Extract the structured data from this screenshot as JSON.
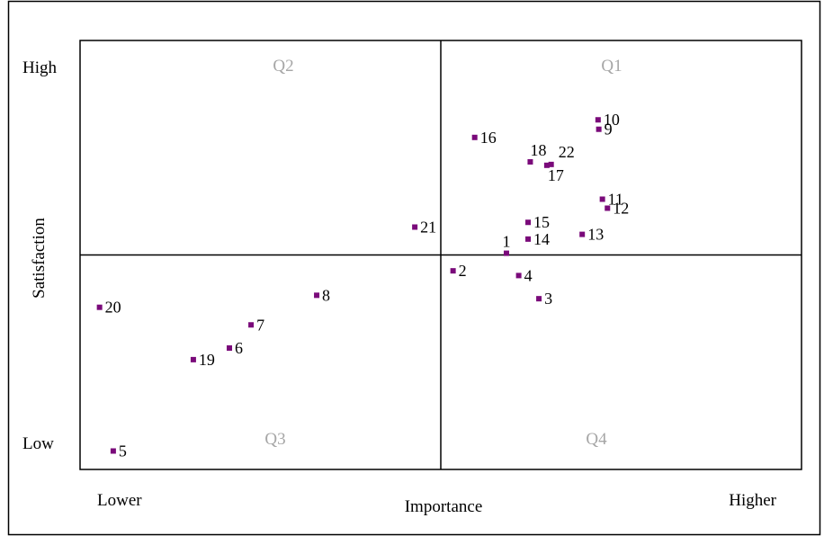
{
  "chart_data": {
    "type": "scatter",
    "title": "",
    "xlabel": "Importance",
    "ylabel": "Satisfaction",
    "x_range_labels": {
      "low": "Lower",
      "high": "Higher"
    },
    "y_range_labels": {
      "low": "Low",
      "high": "High"
    },
    "xlim": [
      0,
      100
    ],
    "ylim": [
      0,
      100
    ],
    "dividers": {
      "x": 50,
      "y": 50
    },
    "quadrants": {
      "q1": "Q1",
      "q2": "Q2",
      "q3": "Q3",
      "q4": "Q4"
    },
    "marker_color": "#7a0a7a",
    "points": [
      {
        "label": "1",
        "x": 59.1,
        "y": 50.4
      },
      {
        "label": "2",
        "x": 51.7,
        "y": 46.3
      },
      {
        "label": "3",
        "x": 63.6,
        "y": 39.8
      },
      {
        "label": "4",
        "x": 60.8,
        "y": 45.2
      },
      {
        "label": "5",
        "x": 4.6,
        "y": 4.3
      },
      {
        "label": "6",
        "x": 20.7,
        "y": 28.3
      },
      {
        "label": "7",
        "x": 23.7,
        "y": 33.7
      },
      {
        "label": "8",
        "x": 32.8,
        "y": 40.6
      },
      {
        "label": "9",
        "x": 71.9,
        "y": 79.3
      },
      {
        "label": "10",
        "x": 71.8,
        "y": 81.5
      },
      {
        "label": "11",
        "x": 72.4,
        "y": 63.0
      },
      {
        "label": "12",
        "x": 73.1,
        "y": 60.9
      },
      {
        "label": "13",
        "x": 69.6,
        "y": 54.8
      },
      {
        "label": "14",
        "x": 62.1,
        "y": 53.7
      },
      {
        "label": "15",
        "x": 62.1,
        "y": 57.6
      },
      {
        "label": "16",
        "x": 54.7,
        "y": 77.4
      },
      {
        "label": "17",
        "x": 64.7,
        "y": 70.9
      },
      {
        "label": "18",
        "x": 62.4,
        "y": 71.7
      },
      {
        "label": "19",
        "x": 15.7,
        "y": 25.6
      },
      {
        "label": "20",
        "x": 2.7,
        "y": 37.8
      },
      {
        "label": "21",
        "x": 46.4,
        "y": 56.5
      },
      {
        "label": "22",
        "x": 65.3,
        "y": 71.1
      }
    ]
  }
}
